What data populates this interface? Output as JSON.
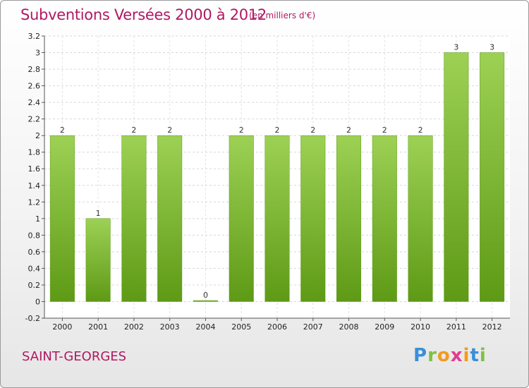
{
  "header": {
    "title": "Subventions Versées 2000 à 2012",
    "subtitle": "(en milliers d'€)"
  },
  "footer": {
    "place": "SAINT-GEORGES",
    "brand_letters": [
      "P",
      "r",
      "o",
      "x",
      "i",
      "t",
      "i"
    ],
    "brand_colors": [
      "#3a8fd8",
      "#7cc242",
      "#f39a1e",
      "#e23b8f",
      "#f39a1e",
      "#3a8fd8",
      "#7cc242"
    ]
  },
  "chart_data": {
    "type": "bar",
    "categories": [
      "2000",
      "2001",
      "2002",
      "2003",
      "2004",
      "2005",
      "2006",
      "2007",
      "2008",
      "2009",
      "2010",
      "2011",
      "2012"
    ],
    "values": [
      2,
      1,
      2,
      2,
      0,
      2,
      2,
      2,
      2,
      2,
      2,
      3,
      3
    ],
    "data_labels": [
      "2",
      "1",
      "2",
      "2",
      "0",
      "2",
      "2",
      "2",
      "2",
      "2",
      "2",
      "3",
      "3"
    ],
    "yticks": [
      "-0.2",
      "0",
      "0.2",
      "0.4",
      "0.6",
      "0.8",
      "1",
      "1.2",
      "1.4",
      "1.6",
      "1.8",
      "2",
      "2.2",
      "2.4",
      "2.6",
      "2.8",
      "3",
      "3.2"
    ],
    "ytick_values": [
      -0.2,
      0,
      0.2,
      0.4,
      0.6,
      0.8,
      1,
      1.2,
      1.4,
      1.6,
      1.8,
      2,
      2.2,
      2.4,
      2.6,
      2.8,
      3,
      3.2
    ],
    "ylim": [
      -0.2,
      3.2
    ],
    "grid": true,
    "bar_color_light": "#9dd155",
    "bar_color_dark": "#5e9a16"
  }
}
